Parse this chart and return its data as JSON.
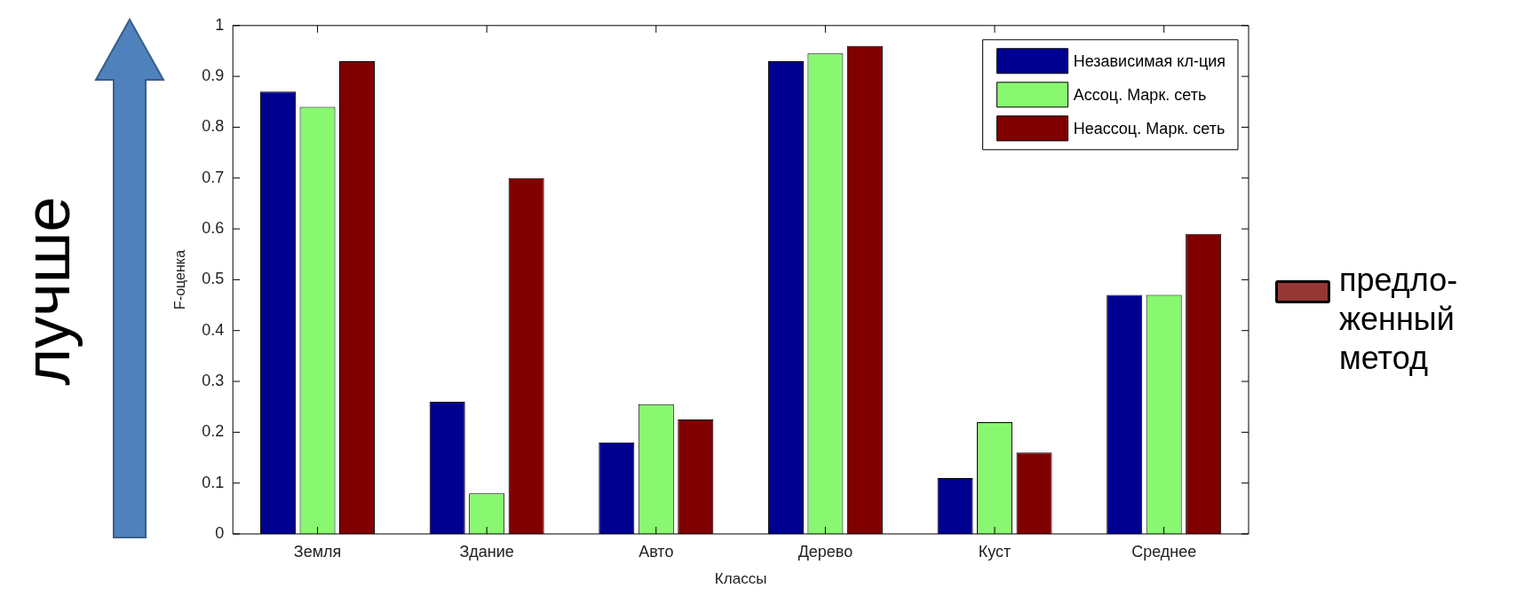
{
  "chart_data": {
    "type": "bar",
    "xlabel": "Классы",
    "ylabel": "F-оценка",
    "categories": [
      "Земля",
      "Здание",
      "Авто",
      "Дерево",
      "Куст",
      "Среднее"
    ],
    "series": [
      {
        "name": "Независимая кл-ция",
        "color": "#000090",
        "values": [
          0.87,
          0.26,
          0.18,
          0.93,
          0.11,
          0.47
        ]
      },
      {
        "name": "Ассоц. Марк. сеть",
        "color": "#88f870",
        "values": [
          0.84,
          0.08,
          0.255,
          0.945,
          0.22,
          0.47
        ]
      },
      {
        "name": "Неассоц. Марк. сеть",
        "color": "#800000",
        "values": [
          0.93,
          0.7,
          0.225,
          0.96,
          0.16,
          0.59
        ]
      }
    ],
    "ylim": [
      0,
      1
    ],
    "yticks": [
      0,
      0.1,
      0.2,
      0.3,
      0.4,
      0.5,
      0.6,
      0.7,
      0.8,
      0.9,
      1
    ],
    "grid": false,
    "legend": "top right",
    "annotations": [
      "лучше",
      "предло-\nженный\nметод"
    ]
  }
}
